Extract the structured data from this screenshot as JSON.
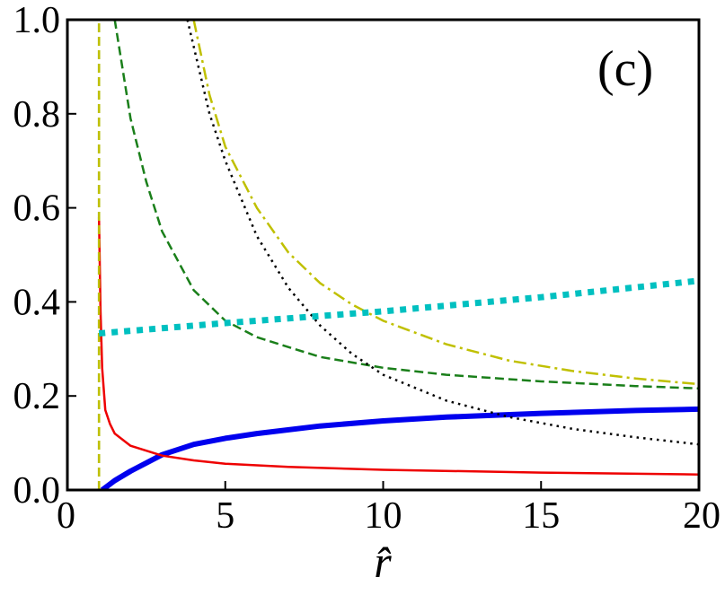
{
  "chart_data": {
    "type": "line",
    "xlabel": "r̂",
    "ylabel": "",
    "xlim": [
      0,
      20
    ],
    "ylim": [
      0,
      1.0
    ],
    "x_ticks": [
      0,
      5,
      10,
      15,
      20
    ],
    "x_tick_labels": [
      "0",
      "5",
      "10",
      "15",
      "20"
    ],
    "y_ticks": [
      0.0,
      0.2,
      0.4,
      0.6,
      0.8,
      1.0
    ],
    "y_tick_labels": [
      "0.0",
      "0.2",
      "0.4",
      "0.6",
      "0.8",
      "1.0"
    ],
    "annotation": "(c)",
    "grid": false,
    "series": [
      {
        "color": "#0000ee",
        "style": "solid",
        "width": 6,
        "x": [
          1.1,
          1.5,
          2,
          3,
          4,
          5,
          6,
          8,
          10,
          12,
          15,
          18,
          20
        ],
        "y": [
          0.0,
          0.02,
          0.04,
          0.075,
          0.097,
          0.11,
          0.12,
          0.136,
          0.147,
          0.155,
          0.163,
          0.169,
          0.172
        ]
      },
      {
        "color": "#ee0000",
        "style": "solid",
        "width": 2.5,
        "x": [
          1.0,
          1.05,
          1.1,
          1.2,
          1.35,
          1.5,
          2,
          3,
          4,
          5,
          7,
          10,
          15,
          20
        ],
        "y": [
          0.58,
          0.38,
          0.26,
          0.17,
          0.14,
          0.12,
          0.094,
          0.073,
          0.063,
          0.056,
          0.049,
          0.043,
          0.037,
          0.033
        ]
      },
      {
        "color": "#1a7f1a",
        "style": "dashed",
        "width": 2.5,
        "x": [
          1.5,
          2,
          2.5,
          3,
          4,
          5,
          6,
          8,
          10,
          12,
          15,
          18,
          20
        ],
        "y": [
          1.0,
          0.79,
          0.655,
          0.55,
          0.425,
          0.36,
          0.325,
          0.283,
          0.26,
          0.245,
          0.231,
          0.221,
          0.216
        ]
      },
      {
        "color": "#1a7f1a",
        "style": "dashed",
        "width": 2.5,
        "x": [
          1.0,
          1.0
        ],
        "y": [
          0.0,
          1.0
        ]
      },
      {
        "color": "#000000",
        "style": "dotted",
        "width": 2.5,
        "x": [
          3.8,
          4.5,
          5,
          6,
          7,
          8,
          9,
          10,
          12,
          14,
          16,
          18,
          20
        ],
        "y": [
          1.0,
          0.8,
          0.7,
          0.54,
          0.43,
          0.35,
          0.29,
          0.245,
          0.19,
          0.155,
          0.13,
          0.112,
          0.097
        ]
      },
      {
        "color": "#c0c000",
        "style": "dashdot",
        "width": 2.5,
        "x": [
          4.0,
          4.5,
          5,
          6,
          7,
          8,
          9,
          10,
          12,
          14,
          16,
          18,
          20
        ],
        "y": [
          1.0,
          0.84,
          0.73,
          0.6,
          0.505,
          0.44,
          0.395,
          0.36,
          0.31,
          0.275,
          0.253,
          0.237,
          0.225
        ]
      },
      {
        "color": "#c0c000",
        "style": "dashed",
        "width": 2.5,
        "x": [
          1.0,
          1.0
        ],
        "y": [
          0.0,
          1.0
        ]
      },
      {
        "color": "#00c0c0",
        "style": "dotted_thick",
        "width": 7,
        "x": [
          1.0,
          5,
          10,
          15,
          20
        ],
        "y": [
          0.333,
          0.355,
          0.38,
          0.41,
          0.445
        ]
      }
    ]
  }
}
